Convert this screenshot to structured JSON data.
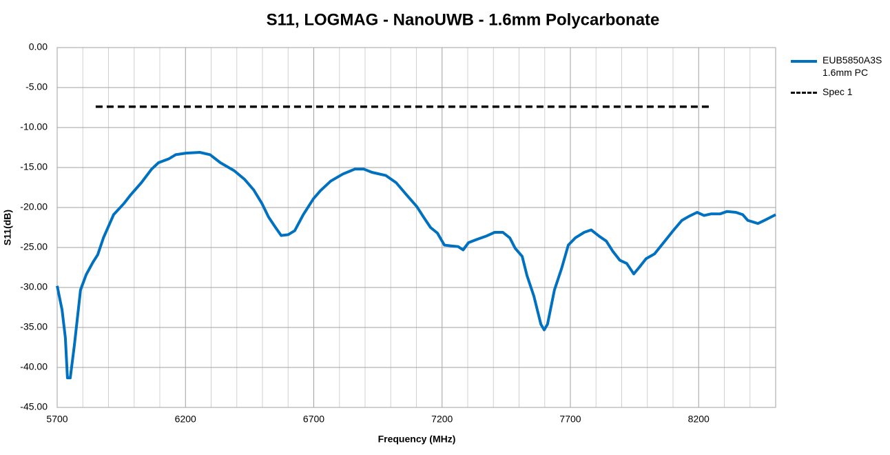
{
  "chart_data": {
    "type": "line",
    "title": "S11, LOGMAG - NanoUWB - 1.6mm Polycarbonate",
    "xlabel": "Frequency (MHz)",
    "ylabel": "S11(dB)",
    "xlim": [
      5700,
      8500
    ],
    "xticks": [
      5700,
      6200,
      6700,
      7200,
      7700,
      8200
    ],
    "x_minor_ticks": [
      5800,
      5900,
      6000,
      6100,
      6300,
      6400,
      6500,
      6600,
      6800,
      6900,
      7000,
      7100,
      7300,
      7400,
      7500,
      7600,
      7800,
      7900,
      8000,
      8100,
      8300,
      8400,
      8500
    ],
    "ylim": [
      -45,
      0
    ],
    "yticks": [
      {
        "value": 0,
        "label": "0.00"
      },
      {
        "value": -5,
        "label": "-5.00"
      },
      {
        "value": -10,
        "label": "-10.00"
      },
      {
        "value": -15,
        "label": "-15.00"
      },
      {
        "value": -20,
        "label": "-20.00"
      },
      {
        "value": -25,
        "label": "-25.00"
      },
      {
        "value": -30,
        "label": "-30.00"
      },
      {
        "value": -35,
        "label": "-35.00"
      },
      {
        "value": -40,
        "label": "-40.00"
      },
      {
        "value": -45,
        "label": "-45.00"
      }
    ],
    "grid": true,
    "legend": "right",
    "series": [
      {
        "name": "EUB5850A3S 1.6mm PC",
        "color": "#0070c0",
        "dash": false,
        "x": [
          5700,
          5719,
          5732,
          5740,
          5751,
          5767,
          5791,
          5813,
          5840,
          5858,
          5880,
          5920,
          5960,
          5987,
          6028,
          6068,
          6095,
          6136,
          6162,
          6202,
          6256,
          6296,
          6336,
          6390,
          6431,
          6466,
          6498,
          6524,
          6551,
          6573,
          6600,
          6626,
          6659,
          6699,
          6726,
          6766,
          6814,
          6860,
          6895,
          6927,
          6981,
          7021,
          7061,
          7102,
          7128,
          7155,
          7182,
          7209,
          7236,
          7263,
          7282,
          7303,
          7335,
          7370,
          7405,
          7437,
          7464,
          7485,
          7512,
          7531,
          7558,
          7585,
          7598,
          7611,
          7638,
          7665,
          7692,
          7719,
          7754,
          7781,
          7813,
          7840,
          7866,
          7893,
          7920,
          7947,
          7968,
          7995,
          8028,
          8068,
          8103,
          8135,
          8162,
          8194,
          8221,
          8248,
          8283,
          8310,
          8345,
          8372,
          8391,
          8431,
          8463,
          8500
        ],
        "values": [
          -29.8,
          -32.8,
          -36.3,
          -41.3,
          -41.3,
          -37.2,
          -30.3,
          -28.4,
          -26.8,
          -25.9,
          -23.8,
          -20.9,
          -19.5,
          -18.4,
          -16.9,
          -15.2,
          -14.4,
          -13.9,
          -13.4,
          -13.2,
          -13.1,
          -13.4,
          -14.4,
          -15.4,
          -16.5,
          -17.8,
          -19.5,
          -21.2,
          -22.5,
          -23.5,
          -23.4,
          -22.9,
          -20.9,
          -18.9,
          -17.9,
          -16.7,
          -15.8,
          -15.2,
          -15.2,
          -15.6,
          -16.0,
          -16.9,
          -18.4,
          -19.9,
          -21.2,
          -22.5,
          -23.2,
          -24.7,
          -24.8,
          -24.9,
          -25.3,
          -24.4,
          -24.0,
          -23.6,
          -23.1,
          -23.1,
          -23.8,
          -25.1,
          -26.1,
          -28.5,
          -31.1,
          -34.6,
          -35.3,
          -34.6,
          -30.3,
          -27.7,
          -24.7,
          -23.8,
          -23.1,
          -22.8,
          -23.6,
          -24.2,
          -25.5,
          -26.6,
          -27.0,
          -28.3,
          -27.5,
          -26.4,
          -25.8,
          -24.2,
          -22.8,
          -21.6,
          -21.1,
          -20.6,
          -21.0,
          -20.8,
          -20.8,
          -20.5,
          -20.6,
          -20.9,
          -21.6,
          -22.0,
          -21.5,
          -20.9
        ]
      },
      {
        "name": "Spec 1",
        "color": "#000000",
        "dash": true,
        "x": [
          5850,
          8250
        ],
        "values": [
          -7.4,
          -7.4
        ]
      }
    ]
  }
}
